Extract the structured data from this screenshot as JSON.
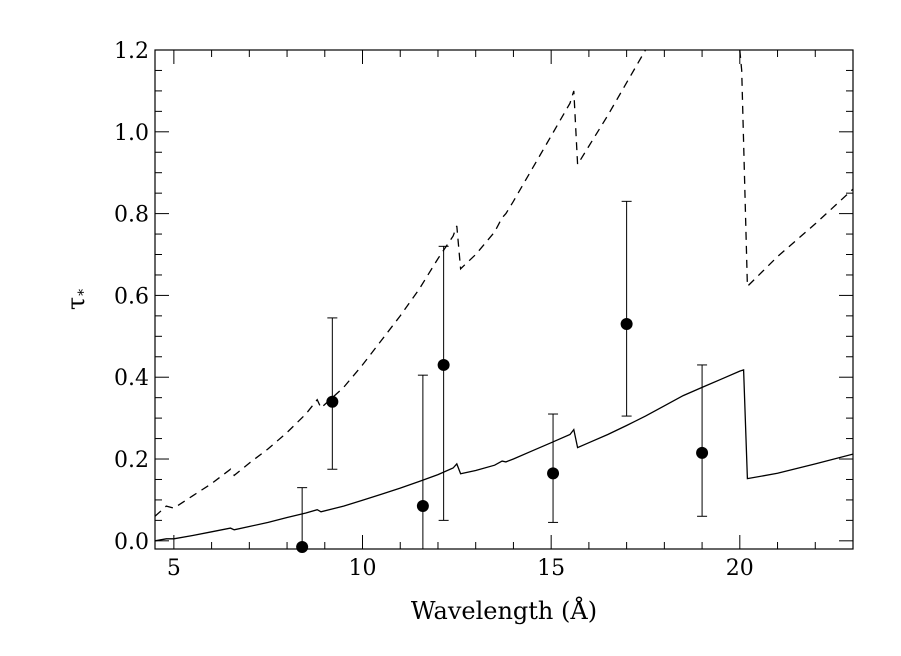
{
  "chart_data": {
    "type": "line",
    "xlabel": "Wavelength (Å)",
    "ylabel": "τ",
    "ylabel_sub": "*",
    "xlim": [
      4.5,
      23
    ],
    "ylim": [
      -0.02,
      1.2
    ],
    "x_ticks": [
      5,
      10,
      15,
      20
    ],
    "x_tick_labels": [
      "5",
      "10",
      "15",
      "20"
    ],
    "y_ticks": [
      0.0,
      0.2,
      0.4,
      0.6,
      0.8,
      1.0,
      1.2
    ],
    "y_tick_labels": [
      "0.0",
      "0.2",
      "0.4",
      "0.6",
      "0.8",
      "1.0",
      "1.2"
    ],
    "series": [
      {
        "style": "solid",
        "x": [
          4.5,
          4.8,
          5.0,
          5.5,
          6.0,
          6.5,
          6.6,
          7.0,
          7.5,
          8.0,
          8.5,
          8.8,
          8.9,
          9.5,
          10.0,
          10.5,
          11.0,
          11.5,
          12.0,
          12.4,
          12.5,
          12.6,
          13.0,
          13.5,
          13.7,
          13.8,
          14.0,
          14.5,
          15.0,
          15.5,
          15.6,
          15.7,
          16.0,
          16.5,
          17.0,
          17.5,
          18.0,
          18.5,
          19.0,
          19.5,
          20.0,
          20.1,
          20.2,
          21.0,
          22.0,
          23.0
        ],
        "y": [
          0.0,
          0.005,
          0.005,
          0.013,
          0.022,
          0.031,
          0.027,
          0.035,
          0.045,
          0.057,
          0.068,
          0.076,
          0.071,
          0.085,
          0.099,
          0.114,
          0.129,
          0.145,
          0.162,
          0.178,
          0.188,
          0.164,
          0.172,
          0.185,
          0.195,
          0.193,
          0.2,
          0.22,
          0.24,
          0.26,
          0.272,
          0.228,
          0.24,
          0.26,
          0.282,
          0.305,
          0.33,
          0.355,
          0.375,
          0.395,
          0.415,
          0.418,
          0.152,
          0.165,
          0.188,
          0.212
        ]
      },
      {
        "style": "dashed",
        "x": [
          4.5,
          4.8,
          5.0,
          5.5,
          6.0,
          6.5,
          6.6,
          7.0,
          7.5,
          8.0,
          8.5,
          8.8,
          8.9,
          9.5,
          10.0,
          10.5,
          11.0,
          11.5,
          12.0,
          12.4,
          12.5,
          12.6,
          13.0,
          13.5,
          13.7,
          13.8,
          14.0,
          14.5,
          15.0,
          15.5,
          15.6,
          15.7,
          16.0,
          16.5,
          17.0,
          17.5
        ],
        "y": [
          0.06,
          0.085,
          0.08,
          0.11,
          0.14,
          0.175,
          0.16,
          0.19,
          0.225,
          0.265,
          0.31,
          0.345,
          0.325,
          0.375,
          0.43,
          0.49,
          0.55,
          0.615,
          0.69,
          0.745,
          0.77,
          0.665,
          0.7,
          0.755,
          0.79,
          0.8,
          0.83,
          0.91,
          0.99,
          1.07,
          1.1,
          0.92,
          0.965,
          1.04,
          1.12,
          1.2
        ]
      },
      {
        "style": "dashed",
        "x": [
          20.0,
          20.05,
          20.2,
          21.0,
          22.0,
          23.0
        ],
        "y": [
          1.2,
          1.15,
          0.622,
          0.695,
          0.775,
          0.86
        ]
      }
    ],
    "points": [
      {
        "x": 8.4,
        "y": -0.015,
        "err_low": -0.02,
        "err_high": 0.13
      },
      {
        "x": 9.2,
        "y": 0.34,
        "err_low": 0.175,
        "err_high": 0.545
      },
      {
        "x": 11.6,
        "y": 0.085,
        "err_low": -0.02,
        "err_high": 0.405
      },
      {
        "x": 12.15,
        "y": 0.43,
        "err_low": 0.05,
        "err_high": 0.72
      },
      {
        "x": 15.05,
        "y": 0.165,
        "err_low": 0.045,
        "err_high": 0.31
      },
      {
        "x": 17.0,
        "y": 0.53,
        "err_low": 0.305,
        "err_high": 0.83
      },
      {
        "x": 19.0,
        "y": 0.215,
        "err_low": 0.06,
        "err_high": 0.43
      }
    ],
    "grid": false
  }
}
